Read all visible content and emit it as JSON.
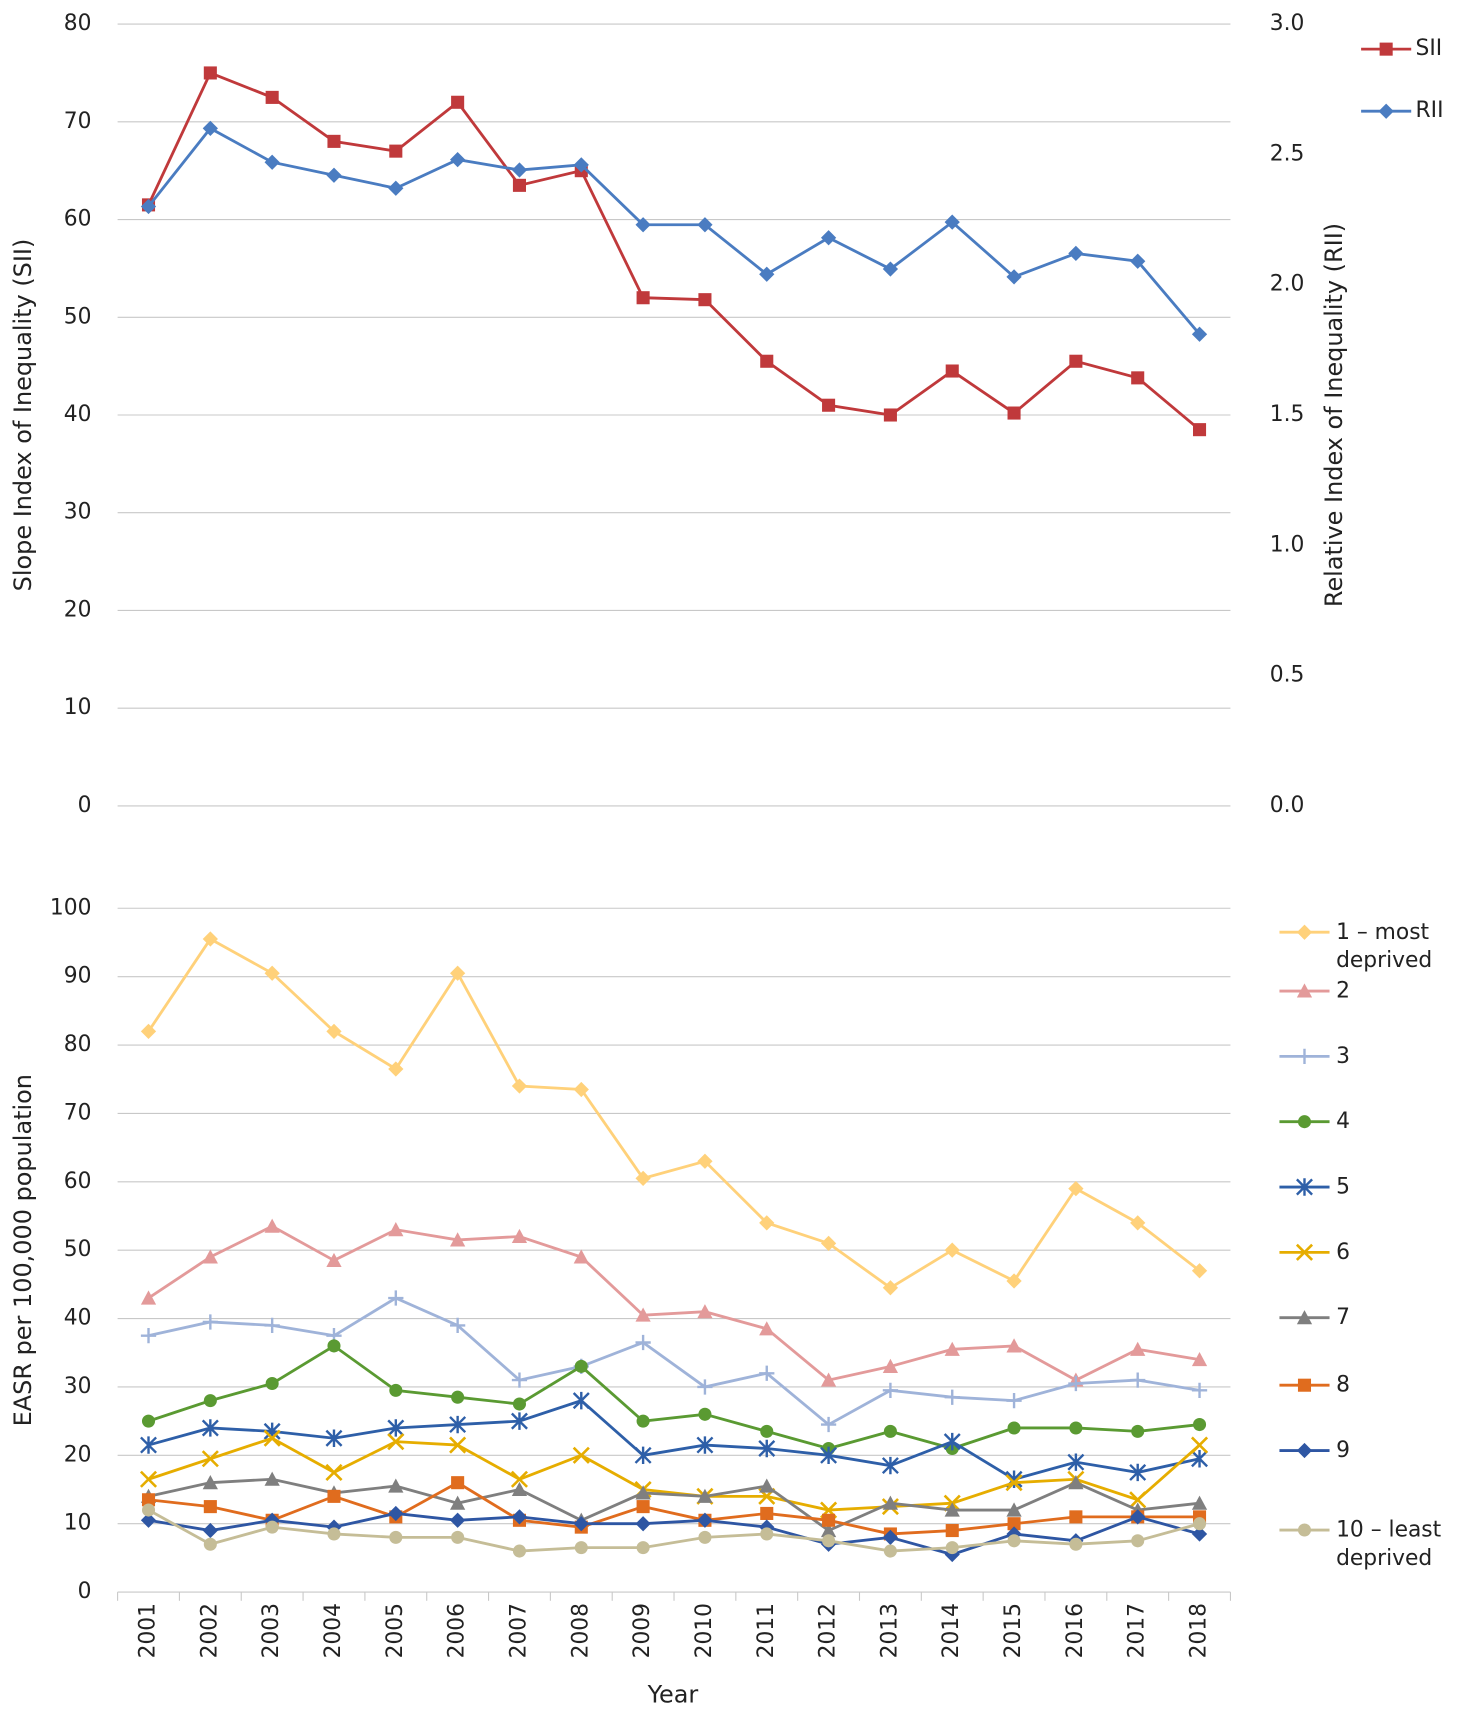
{
  "chart_data": [
    {
      "type": "line",
      "y_label": "Slope Index of Inequality (SII)",
      "y2_label": "Relative Index of Inequality (RII)",
      "categories": [
        "2001",
        "2002",
        "2003",
        "2004",
        "2005",
        "2006",
        "2007",
        "2008",
        "2009",
        "2010",
        "2011",
        "2012",
        "2013",
        "2014",
        "2015",
        "2016",
        "2017",
        "2018"
      ],
      "ylim": [
        0,
        80
      ],
      "yticks": [
        0,
        10,
        20,
        30,
        40,
        50,
        60,
        70,
        80
      ],
      "y2lim": [
        0,
        3
      ],
      "y2ticks": [
        {
          "value": 0,
          "label": "0.0"
        },
        0.5,
        {
          "value": 1,
          "label": "1.0"
        },
        1.5,
        {
          "value": 2,
          "label": "2.0"
        },
        2.5,
        {
          "value": 3,
          "label": "3.0"
        }
      ],
      "grid": true,
      "legend": "top-right",
      "series": [
        {
          "name": "SII",
          "color": "#c0393b",
          "marker": "square",
          "values": [
            61.5,
            75,
            72.5,
            68,
            67,
            72,
            63.5,
            65,
            52,
            51.8,
            45.5,
            41,
            40,
            44.5,
            40.2,
            45.5,
            43.8,
            38.5
          ]
        },
        {
          "name": "RII",
          "color": "#4a7cc1",
          "marker": "diamond",
          "axis": "y2",
          "values": [
            2.3,
            2.6,
            2.47,
            2.42,
            2.37,
            2.48,
            2.44,
            2.46,
            2.23,
            2.23,
            2.04,
            2.18,
            2.06,
            2.24,
            2.03,
            2.12,
            2.09,
            1.81
          ]
        }
      ]
    },
    {
      "type": "line",
      "y_label": "EASR per 100,000 population",
      "x_label": "Year",
      "categories": [
        "2001",
        "2002",
        "2003",
        "2004",
        "2005",
        "2006",
        "2007",
        "2008",
        "2009",
        "2010",
        "2011",
        "2012",
        "2013",
        "2014",
        "2015",
        "2016",
        "2017",
        "2018"
      ],
      "ylim": [
        0,
        100
      ],
      "yticks": [
        0,
        10,
        20,
        30,
        40,
        50,
        60,
        70,
        80,
        90,
        100
      ],
      "grid": true,
      "legend": "right",
      "series": [
        {
          "name": "1 – most deprived",
          "color": "#ffd17a",
          "marker": "diamond",
          "values": [
            82,
            95.5,
            90.5,
            82,
            76.5,
            90.5,
            74,
            73.5,
            60.5,
            63,
            54,
            51,
            44.5,
            50,
            45.5,
            59,
            54,
            47
          ]
        },
        {
          "name": "2",
          "color": "#e39a9a",
          "marker": "triangle",
          "values": [
            43,
            49,
            53.5,
            48.5,
            53,
            51.5,
            52,
            49,
            40.5,
            41,
            38.5,
            31,
            33,
            35.5,
            36,
            31,
            35.5,
            34
          ]
        },
        {
          "name": "3",
          "color": "#9fb3d9",
          "marker": "plus",
          "values": [
            37.5,
            39.5,
            39,
            37.5,
            43,
            39,
            31,
            33,
            36.5,
            30,
            32,
            24.5,
            29.5,
            28.5,
            28,
            30.5,
            31,
            29.5
          ]
        },
        {
          "name": "4",
          "color": "#5a9a32",
          "marker": "circle",
          "values": [
            25,
            28,
            30.5,
            36,
            29.5,
            28.5,
            27.5,
            33,
            25,
            26,
            23.5,
            21,
            23.5,
            21,
            24,
            24,
            23.5,
            24.5
          ]
        },
        {
          "name": "5",
          "color": "#2e5fa8",
          "marker": "asterisk",
          "values": [
            21.5,
            24,
            23.5,
            22.5,
            24,
            24.5,
            25,
            28,
            20,
            21.5,
            21,
            20,
            18.5,
            22,
            16.5,
            19,
            17.5,
            19.5
          ]
        },
        {
          "name": "6",
          "color": "#e6ad00",
          "marker": "x",
          "values": [
            16.5,
            19.5,
            22.5,
            17.5,
            22,
            21.5,
            16.5,
            20,
            15,
            14,
            14,
            12,
            12.5,
            13,
            16,
            16.5,
            13.5,
            21.5
          ]
        },
        {
          "name": "7",
          "color": "#7f7f7f",
          "marker": "triangle",
          "values": [
            14,
            16,
            16.5,
            14.5,
            15.5,
            13,
            15,
            10.5,
            14.5,
            14,
            15.5,
            9,
            13,
            12,
            12,
            16,
            12,
            13
          ]
        },
        {
          "name": "8",
          "color": "#e06c1e",
          "marker": "square",
          "values": [
            13.5,
            12.5,
            10.5,
            14,
            11,
            16,
            10.5,
            9.5,
            12.5,
            10.5,
            11.5,
            10.5,
            8.5,
            9,
            10,
            11,
            11,
            11
          ]
        },
        {
          "name": "9",
          "color": "#2e56a3",
          "marker": "diamond",
          "values": [
            10.5,
            9,
            10.5,
            9.5,
            11.5,
            10.5,
            11,
            10,
            10,
            10.5,
            9.5,
            7,
            8,
            5.5,
            8.5,
            7.5,
            11,
            8.5
          ]
        },
        {
          "name": "10 – least deprived",
          "color": "#c5bd97",
          "marker": "circle",
          "values": [
            12,
            7,
            9.5,
            8.5,
            8,
            8,
            6,
            6.5,
            6.5,
            8,
            8.5,
            7.5,
            6,
            6.5,
            7.5,
            7,
            7.5,
            10
          ]
        }
      ]
    }
  ]
}
